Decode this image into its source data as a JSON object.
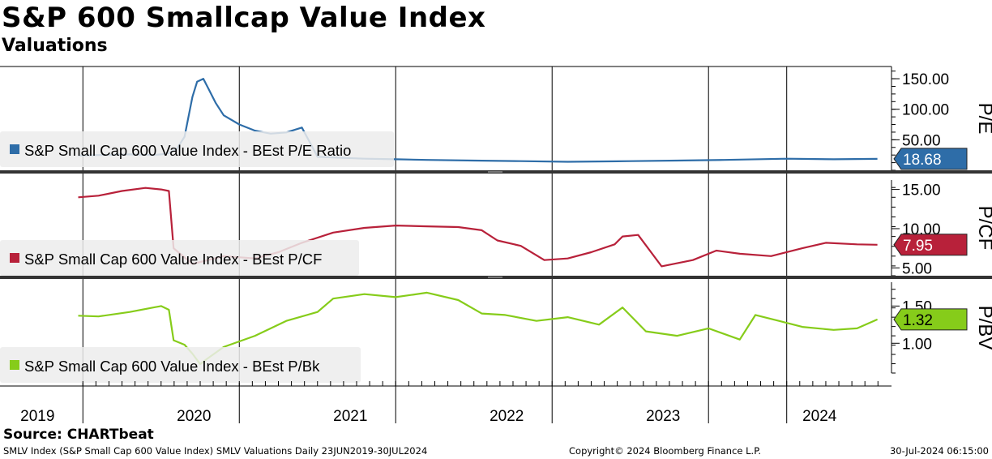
{
  "title": "S&P 600 Smallcap Value Index",
  "subtitle": "Valuations",
  "source": "Source: CHARTbeat",
  "footer": {
    "left": "SMLV Index (S&P Small Cap 600 Value Index) SMLV Valuations  Daily 23JUN2019-30JUL2024",
    "middle": "Copyright© 2024 Bloomberg Finance L.P.",
    "right": "30-Jul-2024 06:15:00"
  },
  "colors": {
    "pe": "#2e6da8",
    "pcf": "#b8213a",
    "pbv": "#86cc1a",
    "gray": "#999999"
  },
  "chart_data": [
    {
      "type": "line",
      "panel": "P/E",
      "axis_label": "P/E",
      "legend": "S&P Small Cap 600 Value Index - BEst P/E Ratio",
      "last_value_label": "18.68",
      "ylim": [
        0,
        170
      ],
      "ticks": [
        50,
        100,
        150
      ],
      "tick_labels": [
        "50.00",
        "100.00",
        "150.00"
      ],
      "x": [
        2019.47,
        2019.6,
        2019.8,
        2019.95,
        2020.0,
        2020.05,
        2020.1,
        2020.15,
        2020.2,
        2020.23,
        2020.27,
        2020.3,
        2020.35,
        2020.4,
        2020.5,
        2020.6,
        2020.7,
        2020.8,
        2020.9,
        2021.0,
        2021.1,
        2021.3,
        2021.5,
        2021.7,
        2022.0,
        2022.3,
        2022.6,
        2023.0,
        2023.3,
        2023.6,
        2024.0,
        2024.3,
        2024.58
      ],
      "values": [
        24,
        25,
        26,
        25,
        26,
        28,
        35,
        55,
        120,
        145,
        150,
        135,
        110,
        90,
        75,
        65,
        60,
        62,
        70,
        22,
        21,
        19,
        18,
        17,
        16,
        15,
        14,
        15,
        16,
        17,
        19,
        18,
        18.68
      ]
    },
    {
      "type": "line",
      "panel": "P/CF",
      "axis_label": "P/CF",
      "legend": "S&P Small Cap 600 Value Index - BEst P/CF",
      "last_value_label": "7.95",
      "ylim": [
        4,
        16.2
      ],
      "ticks": [
        5,
        10,
        15
      ],
      "tick_labels": [
        "5.00",
        "10.00",
        "15.00"
      ],
      "x": [
        2019.47,
        2019.6,
        2019.75,
        2019.9,
        2020.0,
        2020.05,
        2020.08,
        2020.2,
        2020.4,
        2020.6,
        2020.75,
        2020.9,
        2021.1,
        2021.3,
        2021.5,
        2021.7,
        2021.9,
        2022.05,
        2022.15,
        2022.3,
        2022.45,
        2022.6,
        2022.75,
        2022.9,
        2022.95,
        2023.05,
        2023.2,
        2023.4,
        2023.55,
        2023.7,
        2023.9,
        2024.1,
        2024.25,
        2024.45,
        2024.58
      ],
      "values": [
        14.0,
        14.2,
        14.8,
        15.2,
        15.0,
        14.8,
        7.5,
        5.5,
        6.5,
        6.2,
        7.0,
        8.2,
        9.5,
        10.1,
        10.4,
        10.3,
        10.2,
        9.8,
        8.5,
        7.8,
        6.0,
        6.2,
        7.0,
        8.0,
        9.0,
        9.2,
        5.2,
        6.0,
        7.2,
        6.8,
        6.5,
        7.5,
        8.2,
        8.0,
        7.95
      ]
    },
    {
      "type": "line",
      "panel": "P/BV",
      "axis_label": "P/BV",
      "legend": "S&P Small Cap 600 Value Index - BEst P/Bk",
      "last_value_label": "1.32",
      "ylim": [
        0.6,
        1.82
      ],
      "ticks": [
        1.0,
        1.5
      ],
      "tick_labels": [
        "1.00",
        "1.50"
      ],
      "x": [
        2019.47,
        2019.6,
        2019.8,
        2019.95,
        2020.0,
        2020.05,
        2020.08,
        2020.15,
        2020.2,
        2020.25,
        2020.3,
        2020.4,
        2020.6,
        2020.8,
        2021.0,
        2021.1,
        2021.3,
        2021.5,
        2021.7,
        2021.9,
        2022.05,
        2022.2,
        2022.4,
        2022.6,
        2022.8,
        2022.95,
        2023.1,
        2023.3,
        2023.5,
        2023.7,
        2023.8,
        2023.95,
        2024.1,
        2024.3,
        2024.45,
        2024.58
      ],
      "values": [
        1.37,
        1.36,
        1.42,
        1.48,
        1.5,
        1.45,
        1.04,
        0.98,
        0.86,
        0.72,
        0.8,
        0.95,
        1.1,
        1.3,
        1.42,
        1.6,
        1.66,
        1.62,
        1.68,
        1.58,
        1.4,
        1.38,
        1.3,
        1.35,
        1.25,
        1.48,
        1.16,
        1.1,
        1.2,
        1.05,
        1.38,
        1.3,
        1.22,
        1.18,
        1.2,
        1.32
      ]
    }
  ],
  "x_axis": {
    "range": [
      2018.97,
      2024.67
    ],
    "year_labels": [
      "2019",
      "2020",
      "2021",
      "2022",
      "2023",
      "2024"
    ],
    "year_label_positions": [
      2019.21,
      2020.21,
      2021.21,
      2022.21,
      2023.21,
      2024.21
    ],
    "gridlines": [
      2019.5,
      2020.5,
      2021.5,
      2022.5,
      2023.5,
      2024.0
    ]
  }
}
